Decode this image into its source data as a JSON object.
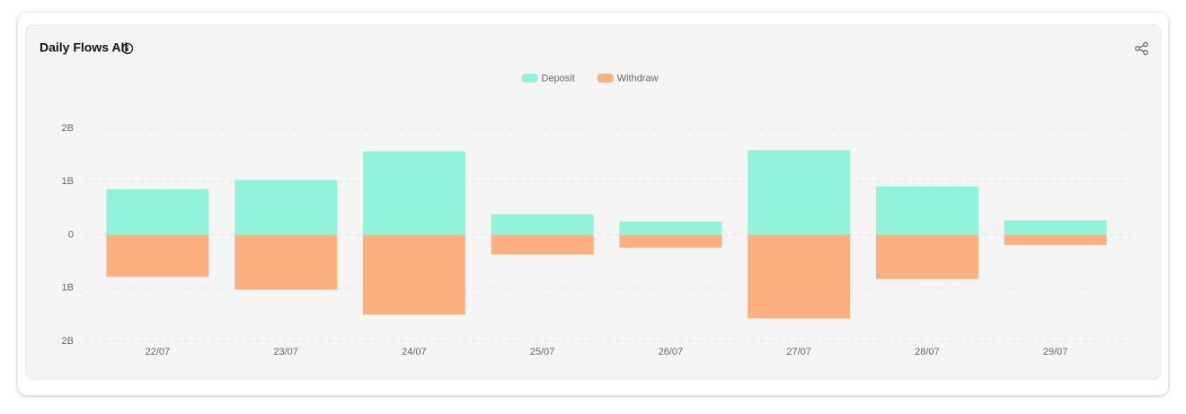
{
  "chart_data": {
    "type": "bar",
    "title": "Daily Flows All",
    "categories": [
      "22/07",
      "23/07",
      "24/07",
      "25/07",
      "26/07",
      "27/07",
      "28/07",
      "29/07"
    ],
    "series": [
      {
        "name": "Deposit",
        "color": "#92f3dc",
        "values": [
          0.86,
          1.03,
          1.57,
          0.39,
          0.25,
          1.59,
          0.91,
          0.27
        ]
      },
      {
        "name": "Withdraw",
        "color": "#fdb07f",
        "values": [
          -0.79,
          -1.03,
          -1.5,
          -0.37,
          -0.24,
          -1.57,
          -0.83,
          -0.19
        ]
      }
    ],
    "ylim": [
      -2,
      2
    ],
    "yticks": [
      {
        "value": -2,
        "label": "2B"
      },
      {
        "value": -1,
        "label": "1B"
      },
      0,
      {
        "value": 1,
        "label": "1B"
      },
      {
        "value": 2,
        "label": "2B"
      }
    ],
    "grid": true,
    "legend": "top"
  }
}
